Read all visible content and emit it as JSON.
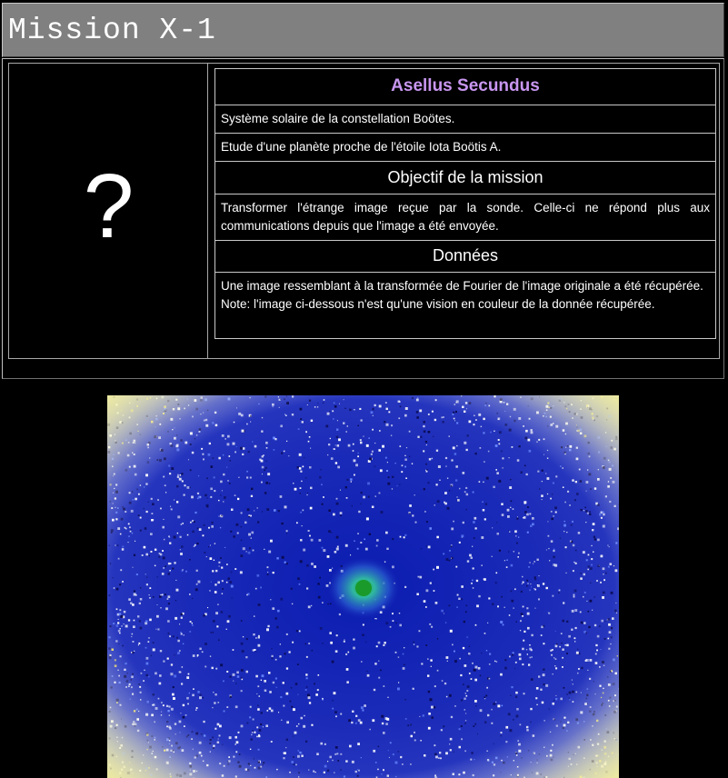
{
  "header": {
    "title": "Mission X-1"
  },
  "left_panel": {
    "placeholder_symbol": "?"
  },
  "mission": {
    "name": "Asellus Secundus",
    "system": "Système solaire de la constellation Boötes.",
    "study": "Etude d'une planète proche de l'étoile Iota Boötis A.",
    "objective_heading": "Objectif de la mission",
    "objective_text": "Transformer l'étrange image reçue par la sonde. Celle-ci ne répond plus aux communications depuis que l'image a été envoyée.",
    "data_heading": "Données",
    "data_text_1": "Une image ressemblant à la transformée de Fourier de l'image originale a été récupérée.",
    "data_text_2": "Note: l'image ci-dessous n'est qu'une vision en couleur de la donnée récupérée."
  },
  "colors": {
    "accent_title": "#c896f0",
    "title_bar_bg": "#808080",
    "spectrum_bg": "#1020a8",
    "spectrum_center": "#22aa33"
  },
  "image": {
    "icon": "fourier-spectrum-image"
  }
}
